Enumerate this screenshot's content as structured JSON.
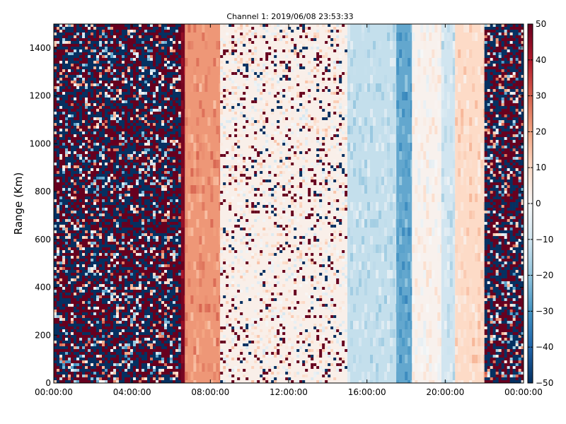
{
  "chart_data": {
    "type": "heatmap",
    "title": "Channel 1: 2019/06/08 23:53:33",
    "xlabel": "",
    "ylabel": "Range (Km)",
    "x_ticks": [
      "00:00:00",
      "04:00:00",
      "08:00:00",
      "12:00:00",
      "16:00:00",
      "20:00:00",
      "00:00:00"
    ],
    "x_range_hours": [
      0,
      24
    ],
    "ylim": [
      0,
      1500
    ],
    "y_ticks": [
      0,
      200,
      400,
      600,
      800,
      1000,
      1200,
      1400
    ],
    "colorbar": {
      "ticks": [
        50,
        40,
        30,
        20,
        10,
        0,
        -10,
        -20,
        -30,
        -40,
        -50
      ],
      "range": [
        -50,
        50
      ],
      "colormap": "RdBu_r"
    },
    "regions": [
      {
        "hours": [
          0,
          6.5
        ],
        "pattern": "noise",
        "mean": 0
      },
      {
        "hours": [
          6.5,
          6.7
        ],
        "pattern": "band",
        "mean": 48
      },
      {
        "hours": [
          6.7,
          8.5
        ],
        "pattern": "band",
        "mean": 22
      },
      {
        "hours": [
          8.5,
          15.0
        ],
        "pattern": "speckle",
        "mean": 3
      },
      {
        "hours": [
          15.0,
          17.5
        ],
        "pattern": "band",
        "mean": -12
      },
      {
        "hours": [
          17.5,
          18.3
        ],
        "pattern": "band",
        "mean": -26
      },
      {
        "hours": [
          18.3,
          19.8
        ],
        "pattern": "band",
        "mean": 2
      },
      {
        "hours": [
          19.8,
          20.5
        ],
        "pattern": "band",
        "mean": -10
      },
      {
        "hours": [
          20.5,
          22.0
        ],
        "pattern": "band",
        "mean": 10
      },
      {
        "hours": [
          22.0,
          24.0
        ],
        "pattern": "noise",
        "mean": 0
      }
    ],
    "colors": {
      "low": "#053061",
      "mid": "#f7f7f7",
      "high": "#67001f"
    }
  }
}
